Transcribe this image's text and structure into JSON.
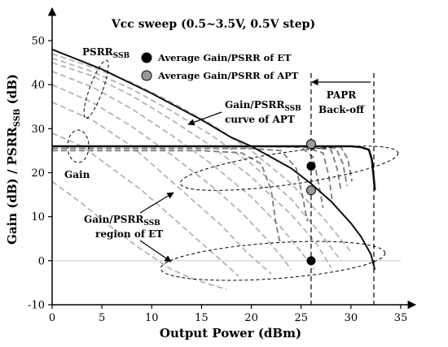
{
  "chart_data": {
    "type": "line",
    "title": "Vcc sweep (0.5~3.5V, 0.5V step)",
    "xlabel": "Output Power (dBm)",
    "ylabel": {
      "base": "Gain (dB) / PSRR",
      "sub": "SSB",
      "tail": " (dB)"
    },
    "xlim": [
      0,
      35
    ],
    "ylim": [
      -10,
      50
    ],
    "x_ticks": [
      0,
      5,
      10,
      15,
      20,
      25,
      30,
      35
    ],
    "y_ticks": [
      -10,
      0,
      10,
      20,
      30,
      40,
      50
    ],
    "grid": false,
    "apt_psrr_curve": {
      "x": [
        0,
        5,
        10,
        15,
        18,
        20,
        22,
        24,
        26,
        28,
        30,
        31,
        32,
        32.4
      ],
      "y": [
        48,
        43.5,
        38,
        32,
        28,
        26,
        23.5,
        21,
        17.5,
        13.5,
        8.5,
        5.5,
        1.5,
        -2
      ]
    },
    "apt_gain_curve": {
      "x": [
        0,
        5,
        10,
        15,
        20,
        25,
        28,
        30,
        31,
        31.8,
        32.1,
        32.3,
        32.4
      ],
      "y": [
        26,
        26,
        26,
        26,
        26,
        26,
        26,
        26,
        25.8,
        25.2,
        23,
        18.5,
        16
      ]
    },
    "et_gain_curves": [
      {
        "x": [
          0,
          5,
          10,
          15,
          19,
          21,
          22,
          22.5,
          22.9
        ],
        "y": [
          25,
          25,
          25,
          25,
          24.5,
          22,
          16,
          8,
          4
        ]
      },
      {
        "x": [
          0,
          5,
          10,
          15,
          20,
          23,
          24.5,
          25.2,
          25.6
        ],
        "y": [
          25.5,
          25.5,
          25.5,
          25.5,
          25.5,
          25,
          21,
          14,
          9
        ]
      },
      {
        "x": [
          0,
          5,
          10,
          15,
          20,
          25,
          26.2,
          26.8,
          27.2
        ],
        "y": [
          26,
          26,
          26,
          26,
          26,
          25.8,
          23.5,
          17,
          12
        ]
      },
      {
        "x": [
          0,
          5,
          10,
          15,
          20,
          25,
          27.2,
          27.8,
          28.1
        ],
        "y": [
          26,
          26,
          26,
          26,
          26,
          26,
          24.5,
          19,
          14
        ]
      },
      {
        "x": [
          0,
          5,
          10,
          15,
          20,
          25,
          28,
          28.6,
          29
        ],
        "y": [
          26,
          26,
          26,
          26,
          26,
          26,
          25.2,
          21,
          16
        ]
      },
      {
        "x": [
          0,
          5,
          10,
          15,
          20,
          25,
          28.5,
          29.2,
          29.6
        ],
        "y": [
          26,
          26,
          26,
          26,
          26,
          26,
          25.6,
          22,
          17
        ]
      },
      {
        "x": [
          0,
          5,
          10,
          15,
          20,
          25,
          29,
          29.7,
          30.1
        ],
        "y": [
          26,
          26,
          26,
          26,
          26,
          26,
          25.8,
          23,
          18
        ]
      }
    ],
    "et_psrr_curves": [
      {
        "x": [
          0,
          3,
          6,
          9,
          12,
          14,
          16,
          17.5
        ],
        "y": [
          18,
          13,
          7.5,
          2.5,
          -2,
          -4,
          -5.5,
          -6.5
        ]
      },
      {
        "x": [
          0,
          3,
          6,
          9,
          12,
          15,
          17,
          18,
          18.7
        ],
        "y": [
          29,
          26,
          21,
          16,
          10,
          4,
          0,
          -2,
          -3.5
        ]
      },
      {
        "x": [
          0,
          4,
          8,
          11,
          14,
          17,
          19.5,
          21,
          22
        ],
        "y": [
          36,
          32,
          26,
          20,
          14,
          8,
          2,
          -1,
          -3
        ]
      },
      {
        "x": [
          0,
          4,
          8,
          12,
          16,
          19,
          21.5,
          23,
          24
        ],
        "y": [
          40,
          36,
          30.5,
          24,
          17,
          11,
          5,
          1,
          -2
        ]
      },
      {
        "x": [
          0,
          4,
          8,
          12,
          16,
          20,
          23,
          25,
          26.3
        ],
        "y": [
          43,
          39.5,
          34.5,
          28.5,
          22,
          14.5,
          7.5,
          2,
          -2
        ]
      },
      {
        "x": [
          0,
          4,
          8,
          12,
          16,
          20,
          24,
          26.5,
          28
        ],
        "y": [
          45,
          42,
          37.5,
          32,
          26,
          19,
          10.5,
          4,
          -1.5
        ]
      },
      {
        "x": [
          0,
          4,
          8,
          12,
          16,
          20,
          24,
          27,
          29
        ],
        "y": [
          46,
          43,
          39,
          34,
          28.5,
          22,
          14,
          6,
          0
        ]
      },
      {
        "x": [
          0,
          4,
          8,
          12,
          16,
          20,
          24,
          27.5,
          30
        ],
        "y": [
          47,
          44,
          40.5,
          36,
          31,
          25,
          17.5,
          9,
          2
        ]
      }
    ],
    "et_points": [
      {
        "x": 26,
        "y": 21.5
      },
      {
        "x": 26,
        "y": 0
      }
    ],
    "apt_points": [
      {
        "x": 26,
        "y": 26.5
      },
      {
        "x": 26,
        "y": 16
      }
    ],
    "vlines": [
      26,
      32.3
    ],
    "reference_y": 0,
    "legend": [
      {
        "label": "Average Gain/PSRR of ET",
        "marker": "et"
      },
      {
        "label": "Average Gain/PSRR of APT",
        "marker": "apt"
      }
    ],
    "legend_position": "top-center",
    "annotations": {
      "psrr": {
        "base": "PSRR",
        "sub": "SSB"
      },
      "gain": "Gain",
      "apt_curve_line1": {
        "base": "Gain/PSRR",
        "sub": "SSB"
      },
      "apt_curve_line2": "curve of APT",
      "et_region_line1": {
        "base": "Gain/PSRR",
        "sub": "SSB"
      },
      "et_region_line2": "region of ET",
      "papr_line1": "PAPR",
      "papr_line2": "Back-off"
    },
    "colors": {
      "apt_curve": "#111111",
      "et_curve": "#b4b4b4",
      "et_gain_curve": "#7a7a7a",
      "et_marker": "#000000",
      "apt_marker": "#9a9a9a",
      "reference_line": "#c8c8c8"
    }
  }
}
